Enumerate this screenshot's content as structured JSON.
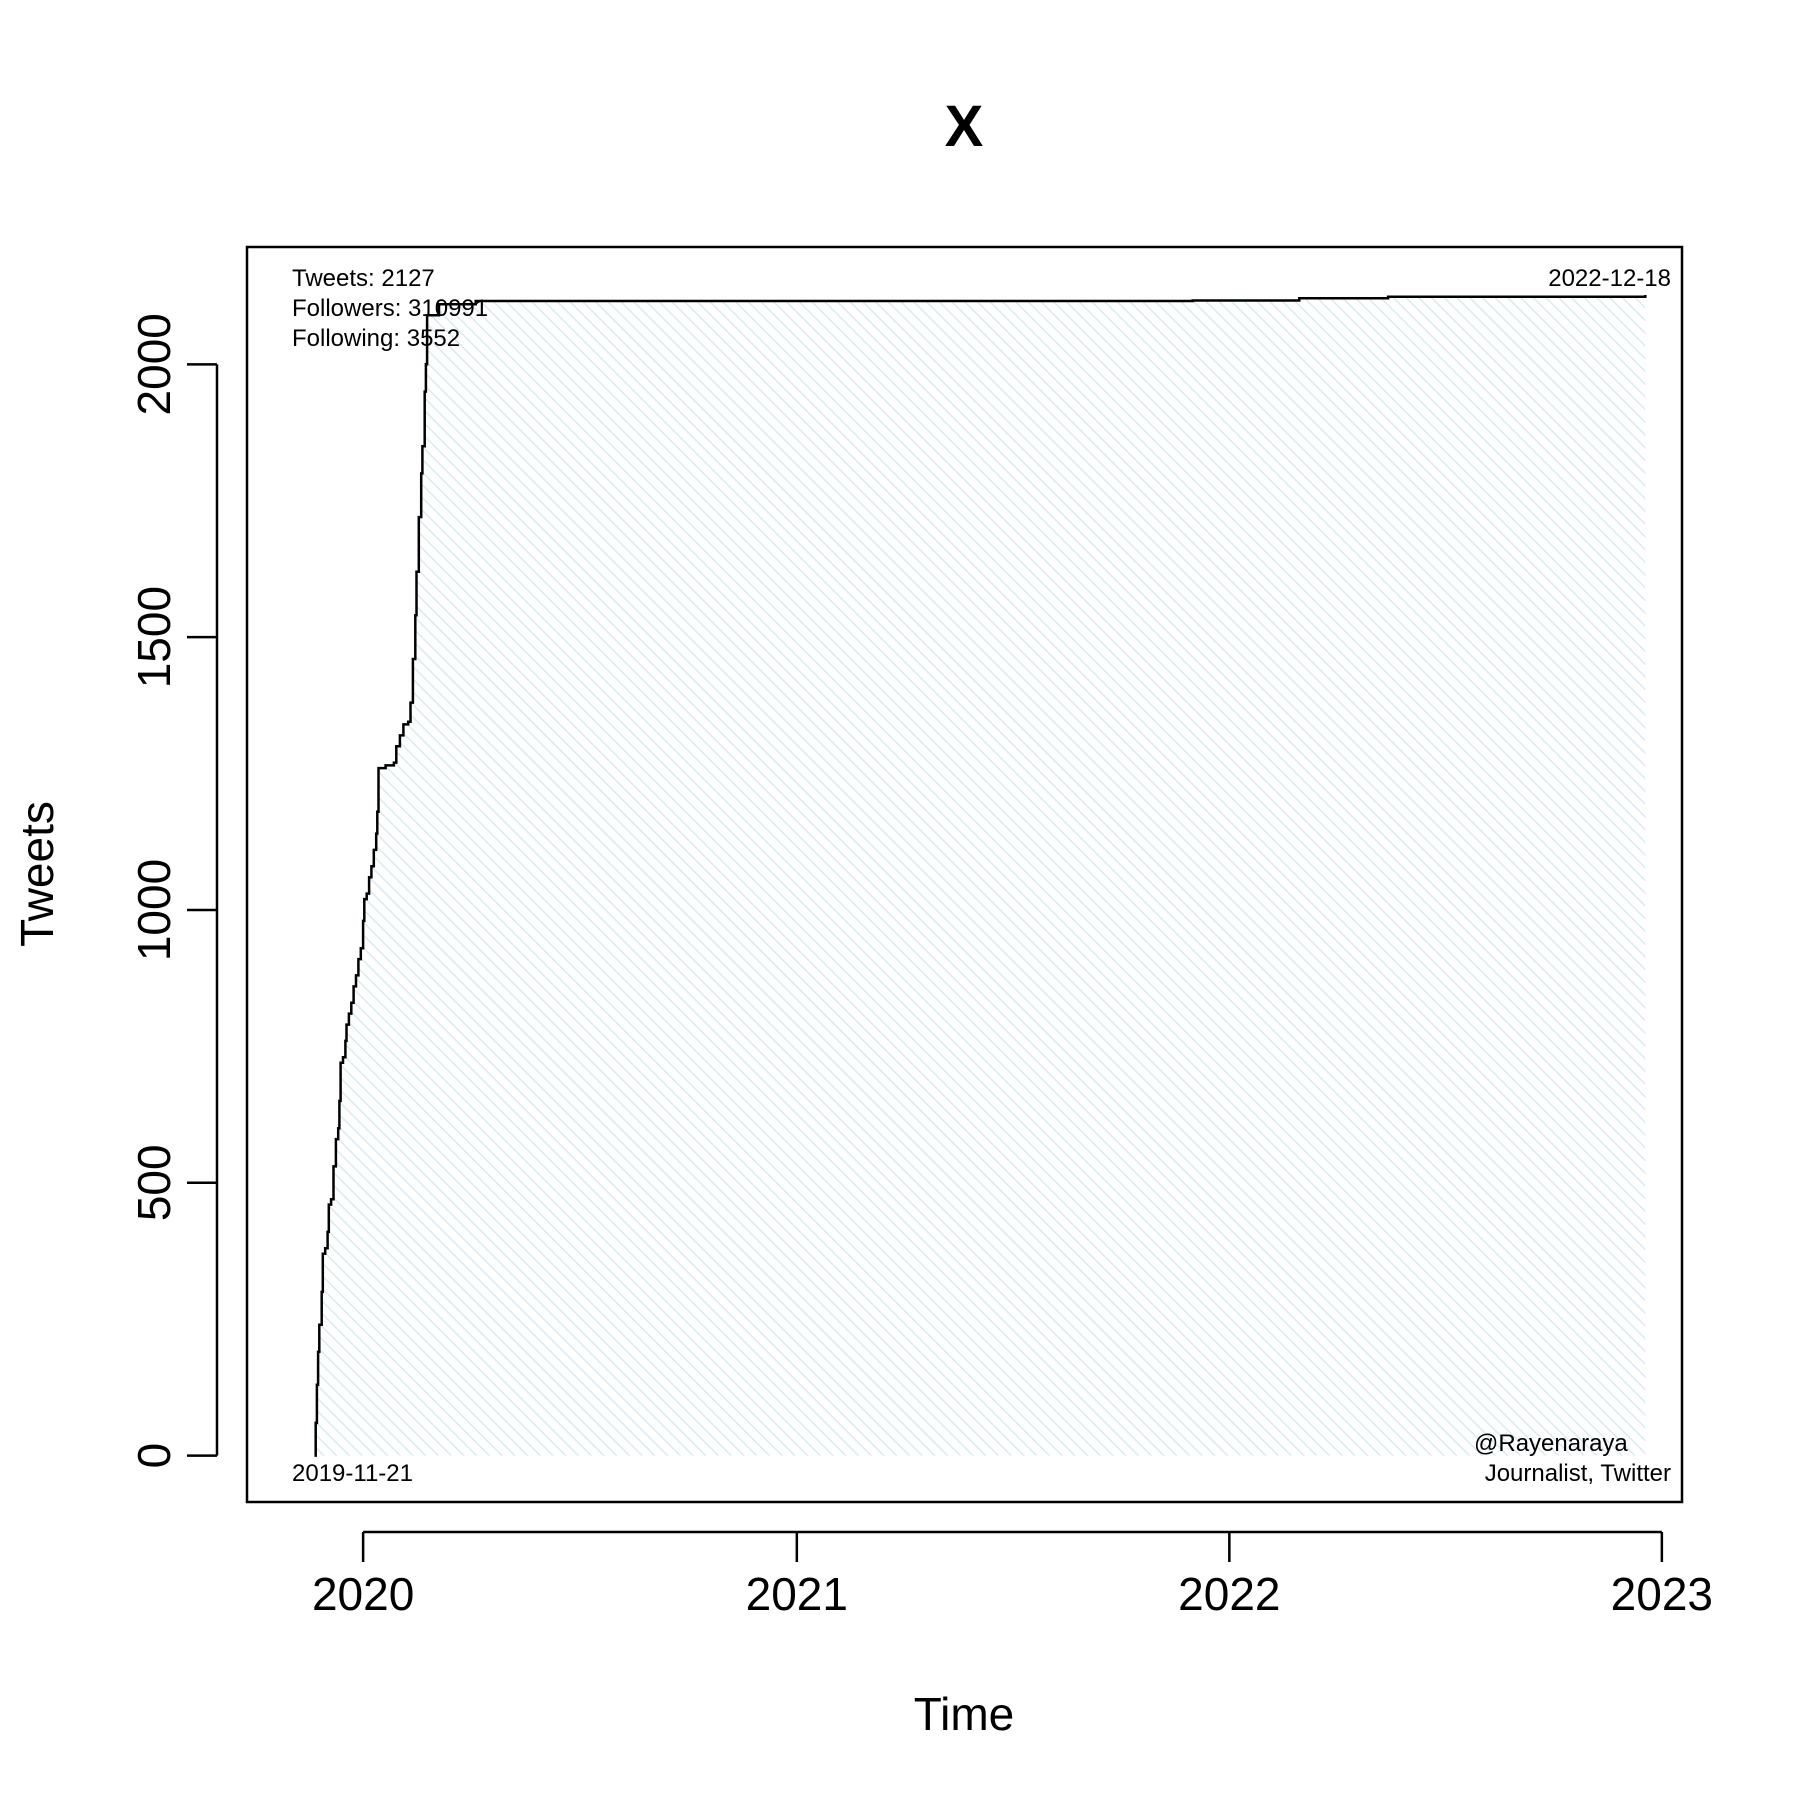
{
  "chart_data": {
    "type": "area",
    "title": "X",
    "xlabel": "Time",
    "ylabel": "Tweets",
    "x_axis_type": "date",
    "xlim": [
      "2019-09-25",
      "2023-01-18"
    ],
    "ylim": [
      -85,
      2215
    ],
    "x_ticks": [
      {
        "label": "2020",
        "date": "2020-01-01"
      },
      {
        "label": "2021",
        "date": "2021-01-01"
      },
      {
        "label": "2022",
        "date": "2022-01-01"
      },
      {
        "label": "2023",
        "date": "2023-01-01"
      }
    ],
    "y_ticks": [
      0,
      500,
      1000,
      1500,
      2000
    ],
    "grid": false,
    "legend": "none",
    "fill_color": "#dbeaf0",
    "line_color": "#000000",
    "annotations": {
      "stats": [
        "Tweets: 2127",
        "Followers: 310991",
        "Following: 3552"
      ],
      "end_date": "2022-12-18",
      "start_date": "2019-11-21",
      "account": [
        "@Rayenaraya",
        "Journalist, Twitter"
      ]
    },
    "series": [
      {
        "points": [
          [
            "2019-11-21",
            0
          ],
          [
            "2019-11-22",
            60
          ],
          [
            "2019-11-23",
            130
          ],
          [
            "2019-11-24",
            190
          ],
          [
            "2019-11-25",
            240
          ],
          [
            "2019-11-27",
            300
          ],
          [
            "2019-11-28",
            370
          ],
          [
            "2019-11-30",
            380
          ],
          [
            "2019-12-02",
            410
          ],
          [
            "2019-12-03",
            460
          ],
          [
            "2019-12-05",
            470
          ],
          [
            "2019-12-07",
            530
          ],
          [
            "2019-12-09",
            580
          ],
          [
            "2019-12-11",
            600
          ],
          [
            "2019-12-12",
            650
          ],
          [
            "2019-12-13",
            720
          ],
          [
            "2019-12-15",
            730
          ],
          [
            "2019-12-17",
            760
          ],
          [
            "2019-12-18",
            790
          ],
          [
            "2019-12-20",
            810
          ],
          [
            "2019-12-22",
            830
          ],
          [
            "2019-12-24",
            860
          ],
          [
            "2019-12-26",
            880
          ],
          [
            "2019-12-28",
            910
          ],
          [
            "2019-12-30",
            930
          ],
          [
            "2020-01-01",
            980
          ],
          [
            "2020-01-02",
            1020
          ],
          [
            "2020-01-04",
            1030
          ],
          [
            "2020-01-06",
            1060
          ],
          [
            "2020-01-08",
            1080
          ],
          [
            "2020-01-10",
            1110
          ],
          [
            "2020-01-12",
            1140
          ],
          [
            "2020-01-13",
            1180
          ],
          [
            "2020-01-14",
            1260
          ],
          [
            "2020-01-20",
            1265
          ],
          [
            "2020-01-27",
            1270
          ],
          [
            "2020-01-29",
            1300
          ],
          [
            "2020-02-01",
            1320
          ],
          [
            "2020-02-04",
            1340
          ],
          [
            "2020-02-08",
            1345
          ],
          [
            "2020-02-10",
            1380
          ],
          [
            "2020-02-12",
            1460
          ],
          [
            "2020-02-14",
            1540
          ],
          [
            "2020-02-15",
            1620
          ],
          [
            "2020-02-17",
            1720
          ],
          [
            "2020-02-19",
            1800
          ],
          [
            "2020-02-20",
            1850
          ],
          [
            "2020-02-22",
            1950
          ],
          [
            "2020-02-23",
            2000
          ],
          [
            "2020-02-24",
            2090
          ],
          [
            "2020-03-05",
            2110
          ],
          [
            "2020-04-05",
            2116
          ],
          [
            "2021-06-01",
            2116
          ],
          [
            "2021-12-01",
            2117
          ],
          [
            "2022-03-01",
            2121
          ],
          [
            "2022-05-15",
            2124
          ],
          [
            "2022-12-18",
            2127
          ]
        ]
      }
    ]
  }
}
